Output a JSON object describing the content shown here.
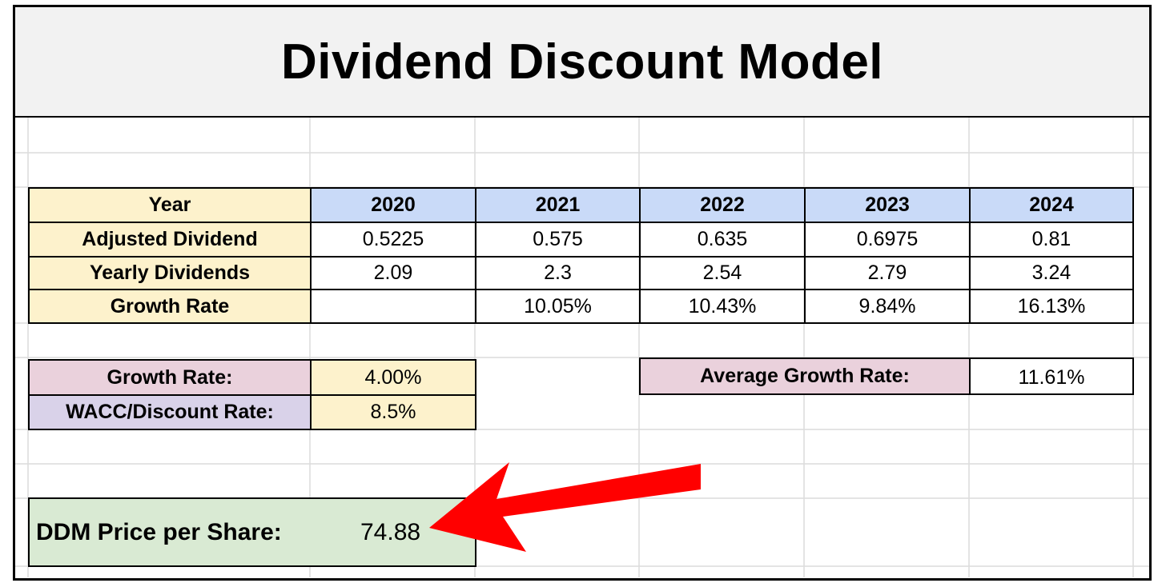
{
  "title": "Dividend Discount Model",
  "table": {
    "year_label": "Year",
    "years": [
      "2020",
      "2021",
      "2022",
      "2023",
      "2024"
    ],
    "rows": [
      {
        "label": "Adjusted Dividend",
        "values": [
          "0.5225",
          "0.575",
          "0.635",
          "0.6975",
          "0.81"
        ]
      },
      {
        "label": "Yearly Dividends",
        "values": [
          "2.09",
          "2.3",
          "2.54",
          "2.79",
          "3.24"
        ]
      },
      {
        "label": "Growth Rate",
        "values": [
          "",
          "10.05%",
          "10.43%",
          "9.84%",
          "16.13%"
        ]
      }
    ]
  },
  "inputs": {
    "growth_label": "Growth Rate:",
    "growth_value": "4.00%",
    "wacc_label": "WACC/Discount Rate:",
    "wacc_value": "8.5%",
    "avg_label": "Average Growth Rate:",
    "avg_value": "11.61%"
  },
  "result": {
    "label": "DDM Price per Share:",
    "value": "74.88"
  },
  "colors": {
    "header_blue": "#c9daf8",
    "label_yellow": "#fdf2cc",
    "pink": "#ead1dc",
    "lavender": "#d9d2e9",
    "green": "#d9ead3",
    "arrow_red": "#ff0000"
  }
}
